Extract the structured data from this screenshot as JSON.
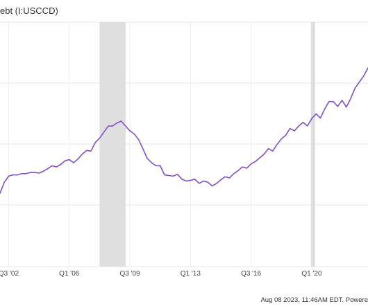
{
  "chart_data": {
    "type": "line",
    "title": "ebt (I:USCCD)",
    "x_ticks": [
      {
        "label": "Q3 '02",
        "x": 2002.5
      },
      {
        "label": "Q1 '06",
        "x": 2006.0
      },
      {
        "label": "Q3 '09",
        "x": 2009.5
      },
      {
        "label": "Q1 '13",
        "x": 2013.0
      },
      {
        "label": "Q3 '16",
        "x": 2016.5
      },
      {
        "label": "Q1 '20",
        "x": 2020.0
      }
    ],
    "xlim": [
      2002.0,
      2023.25
    ],
    "ylim": [
      0,
      4
    ],
    "grid": true,
    "recession_bands": [
      {
        "start": 2007.75,
        "end": 2009.25
      },
      {
        "start": 2019.95,
        "end": 2020.2
      }
    ],
    "series": [
      {
        "color": "#7b4fd6",
        "x": [
          2002.0,
          2002.25,
          2002.5,
          2002.75,
          2003.0,
          2003.25,
          2003.5,
          2003.75,
          2004.0,
          2004.25,
          2004.5,
          2004.75,
          2005.0,
          2005.25,
          2005.5,
          2005.75,
          2006.0,
          2006.25,
          2006.5,
          2006.75,
          2007.0,
          2007.25,
          2007.5,
          2007.75,
          2008.0,
          2008.25,
          2008.5,
          2008.75,
          2009.0,
          2009.25,
          2009.5,
          2009.75,
          2010.0,
          2010.25,
          2010.5,
          2010.75,
          2011.0,
          2011.25,
          2011.5,
          2011.75,
          2012.0,
          2012.25,
          2012.5,
          2012.75,
          2013.0,
          2013.25,
          2013.5,
          2013.75,
          2014.0,
          2014.25,
          2014.5,
          2014.75,
          2015.0,
          2015.25,
          2015.5,
          2015.75,
          2016.0,
          2016.25,
          2016.5,
          2016.75,
          2017.0,
          2017.25,
          2017.5,
          2017.75,
          2018.0,
          2018.25,
          2018.5,
          2018.75,
          2019.0,
          2019.25,
          2019.5,
          2019.75,
          2020.0,
          2020.25,
          2020.5,
          2020.75,
          2021.0,
          2021.25,
          2021.5,
          2021.75,
          2022.0,
          2022.25,
          2022.5,
          2022.75,
          2023.0,
          2023.25
        ],
        "y": [
          1.2,
          1.38,
          1.48,
          1.5,
          1.5,
          1.52,
          1.52,
          1.54,
          1.54,
          1.53,
          1.56,
          1.6,
          1.65,
          1.63,
          1.67,
          1.73,
          1.75,
          1.7,
          1.76,
          1.84,
          1.9,
          1.89,
          2.03,
          2.1,
          2.2,
          2.3,
          2.3,
          2.35,
          2.38,
          2.3,
          2.22,
          2.17,
          2.08,
          1.93,
          1.77,
          1.7,
          1.65,
          1.65,
          1.5,
          1.49,
          1.48,
          1.51,
          1.43,
          1.4,
          1.41,
          1.43,
          1.36,
          1.4,
          1.38,
          1.32,
          1.36,
          1.42,
          1.47,
          1.45,
          1.52,
          1.57,
          1.63,
          1.61,
          1.68,
          1.72,
          1.78,
          1.84,
          1.93,
          1.89,
          2.0,
          2.09,
          2.15,
          2.26,
          2.22,
          2.3,
          2.36,
          2.3,
          2.42,
          2.5,
          2.43,
          2.58,
          2.7,
          2.7,
          2.62,
          2.72,
          2.61,
          2.75,
          2.92,
          3.02,
          3.12,
          3.25
        ]
      }
    ]
  },
  "footer": {
    "text": "Aug 08 2023, 11:46AM EDT. Powere"
  }
}
